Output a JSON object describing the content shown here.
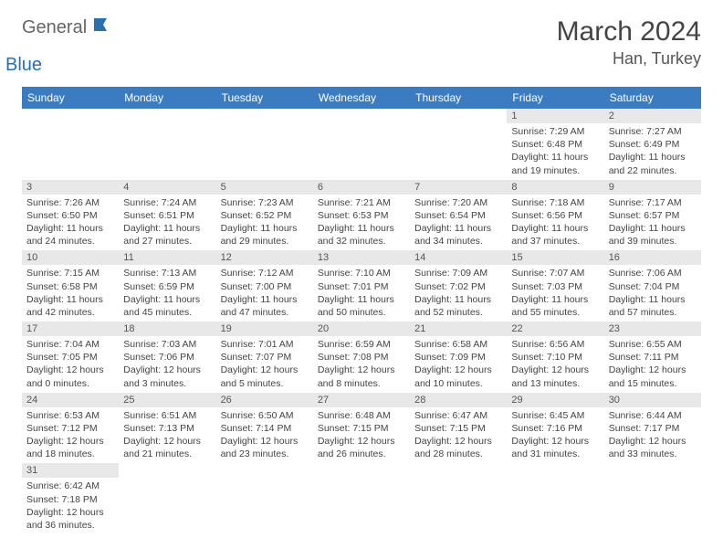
{
  "brand": {
    "part1": "General",
    "part2": "Blue"
  },
  "title": "March 2024",
  "location": "Han, Turkey",
  "weekdays": [
    "Sunday",
    "Monday",
    "Tuesday",
    "Wednesday",
    "Thursday",
    "Friday",
    "Saturday"
  ],
  "colors": {
    "header_bg": "#3b7bbf",
    "header_text": "#ffffff",
    "daynum_bg": "#e8e8e8",
    "border": "#3b7bbf"
  },
  "weeks": [
    [
      null,
      null,
      null,
      null,
      null,
      {
        "day": "1",
        "sunrise": "Sunrise: 7:29 AM",
        "sunset": "Sunset: 6:48 PM",
        "daylight1": "Daylight: 11 hours",
        "daylight2": "and 19 minutes."
      },
      {
        "day": "2",
        "sunrise": "Sunrise: 7:27 AM",
        "sunset": "Sunset: 6:49 PM",
        "daylight1": "Daylight: 11 hours",
        "daylight2": "and 22 minutes."
      }
    ],
    [
      {
        "day": "3",
        "sunrise": "Sunrise: 7:26 AM",
        "sunset": "Sunset: 6:50 PM",
        "daylight1": "Daylight: 11 hours",
        "daylight2": "and 24 minutes."
      },
      {
        "day": "4",
        "sunrise": "Sunrise: 7:24 AM",
        "sunset": "Sunset: 6:51 PM",
        "daylight1": "Daylight: 11 hours",
        "daylight2": "and 27 minutes."
      },
      {
        "day": "5",
        "sunrise": "Sunrise: 7:23 AM",
        "sunset": "Sunset: 6:52 PM",
        "daylight1": "Daylight: 11 hours",
        "daylight2": "and 29 minutes."
      },
      {
        "day": "6",
        "sunrise": "Sunrise: 7:21 AM",
        "sunset": "Sunset: 6:53 PM",
        "daylight1": "Daylight: 11 hours",
        "daylight2": "and 32 minutes."
      },
      {
        "day": "7",
        "sunrise": "Sunrise: 7:20 AM",
        "sunset": "Sunset: 6:54 PM",
        "daylight1": "Daylight: 11 hours",
        "daylight2": "and 34 minutes."
      },
      {
        "day": "8",
        "sunrise": "Sunrise: 7:18 AM",
        "sunset": "Sunset: 6:56 PM",
        "daylight1": "Daylight: 11 hours",
        "daylight2": "and 37 minutes."
      },
      {
        "day": "9",
        "sunrise": "Sunrise: 7:17 AM",
        "sunset": "Sunset: 6:57 PM",
        "daylight1": "Daylight: 11 hours",
        "daylight2": "and 39 minutes."
      }
    ],
    [
      {
        "day": "10",
        "sunrise": "Sunrise: 7:15 AM",
        "sunset": "Sunset: 6:58 PM",
        "daylight1": "Daylight: 11 hours",
        "daylight2": "and 42 minutes."
      },
      {
        "day": "11",
        "sunrise": "Sunrise: 7:13 AM",
        "sunset": "Sunset: 6:59 PM",
        "daylight1": "Daylight: 11 hours",
        "daylight2": "and 45 minutes."
      },
      {
        "day": "12",
        "sunrise": "Sunrise: 7:12 AM",
        "sunset": "Sunset: 7:00 PM",
        "daylight1": "Daylight: 11 hours",
        "daylight2": "and 47 minutes."
      },
      {
        "day": "13",
        "sunrise": "Sunrise: 7:10 AM",
        "sunset": "Sunset: 7:01 PM",
        "daylight1": "Daylight: 11 hours",
        "daylight2": "and 50 minutes."
      },
      {
        "day": "14",
        "sunrise": "Sunrise: 7:09 AM",
        "sunset": "Sunset: 7:02 PM",
        "daylight1": "Daylight: 11 hours",
        "daylight2": "and 52 minutes."
      },
      {
        "day": "15",
        "sunrise": "Sunrise: 7:07 AM",
        "sunset": "Sunset: 7:03 PM",
        "daylight1": "Daylight: 11 hours",
        "daylight2": "and 55 minutes."
      },
      {
        "day": "16",
        "sunrise": "Sunrise: 7:06 AM",
        "sunset": "Sunset: 7:04 PM",
        "daylight1": "Daylight: 11 hours",
        "daylight2": "and 57 minutes."
      }
    ],
    [
      {
        "day": "17",
        "sunrise": "Sunrise: 7:04 AM",
        "sunset": "Sunset: 7:05 PM",
        "daylight1": "Daylight: 12 hours",
        "daylight2": "and 0 minutes."
      },
      {
        "day": "18",
        "sunrise": "Sunrise: 7:03 AM",
        "sunset": "Sunset: 7:06 PM",
        "daylight1": "Daylight: 12 hours",
        "daylight2": "and 3 minutes."
      },
      {
        "day": "19",
        "sunrise": "Sunrise: 7:01 AM",
        "sunset": "Sunset: 7:07 PM",
        "daylight1": "Daylight: 12 hours",
        "daylight2": "and 5 minutes."
      },
      {
        "day": "20",
        "sunrise": "Sunrise: 6:59 AM",
        "sunset": "Sunset: 7:08 PM",
        "daylight1": "Daylight: 12 hours",
        "daylight2": "and 8 minutes."
      },
      {
        "day": "21",
        "sunrise": "Sunrise: 6:58 AM",
        "sunset": "Sunset: 7:09 PM",
        "daylight1": "Daylight: 12 hours",
        "daylight2": "and 10 minutes."
      },
      {
        "day": "22",
        "sunrise": "Sunrise: 6:56 AM",
        "sunset": "Sunset: 7:10 PM",
        "daylight1": "Daylight: 12 hours",
        "daylight2": "and 13 minutes."
      },
      {
        "day": "23",
        "sunrise": "Sunrise: 6:55 AM",
        "sunset": "Sunset: 7:11 PM",
        "daylight1": "Daylight: 12 hours",
        "daylight2": "and 15 minutes."
      }
    ],
    [
      {
        "day": "24",
        "sunrise": "Sunrise: 6:53 AM",
        "sunset": "Sunset: 7:12 PM",
        "daylight1": "Daylight: 12 hours",
        "daylight2": "and 18 minutes."
      },
      {
        "day": "25",
        "sunrise": "Sunrise: 6:51 AM",
        "sunset": "Sunset: 7:13 PM",
        "daylight1": "Daylight: 12 hours",
        "daylight2": "and 21 minutes."
      },
      {
        "day": "26",
        "sunrise": "Sunrise: 6:50 AM",
        "sunset": "Sunset: 7:14 PM",
        "daylight1": "Daylight: 12 hours",
        "daylight2": "and 23 minutes."
      },
      {
        "day": "27",
        "sunrise": "Sunrise: 6:48 AM",
        "sunset": "Sunset: 7:15 PM",
        "daylight1": "Daylight: 12 hours",
        "daylight2": "and 26 minutes."
      },
      {
        "day": "28",
        "sunrise": "Sunrise: 6:47 AM",
        "sunset": "Sunset: 7:15 PM",
        "daylight1": "Daylight: 12 hours",
        "daylight2": "and 28 minutes."
      },
      {
        "day": "29",
        "sunrise": "Sunrise: 6:45 AM",
        "sunset": "Sunset: 7:16 PM",
        "daylight1": "Daylight: 12 hours",
        "daylight2": "and 31 minutes."
      },
      {
        "day": "30",
        "sunrise": "Sunrise: 6:44 AM",
        "sunset": "Sunset: 7:17 PM",
        "daylight1": "Daylight: 12 hours",
        "daylight2": "and 33 minutes."
      }
    ],
    [
      {
        "day": "31",
        "sunrise": "Sunrise: 6:42 AM",
        "sunset": "Sunset: 7:18 PM",
        "daylight1": "Daylight: 12 hours",
        "daylight2": "and 36 minutes."
      },
      null,
      null,
      null,
      null,
      null,
      null
    ]
  ]
}
